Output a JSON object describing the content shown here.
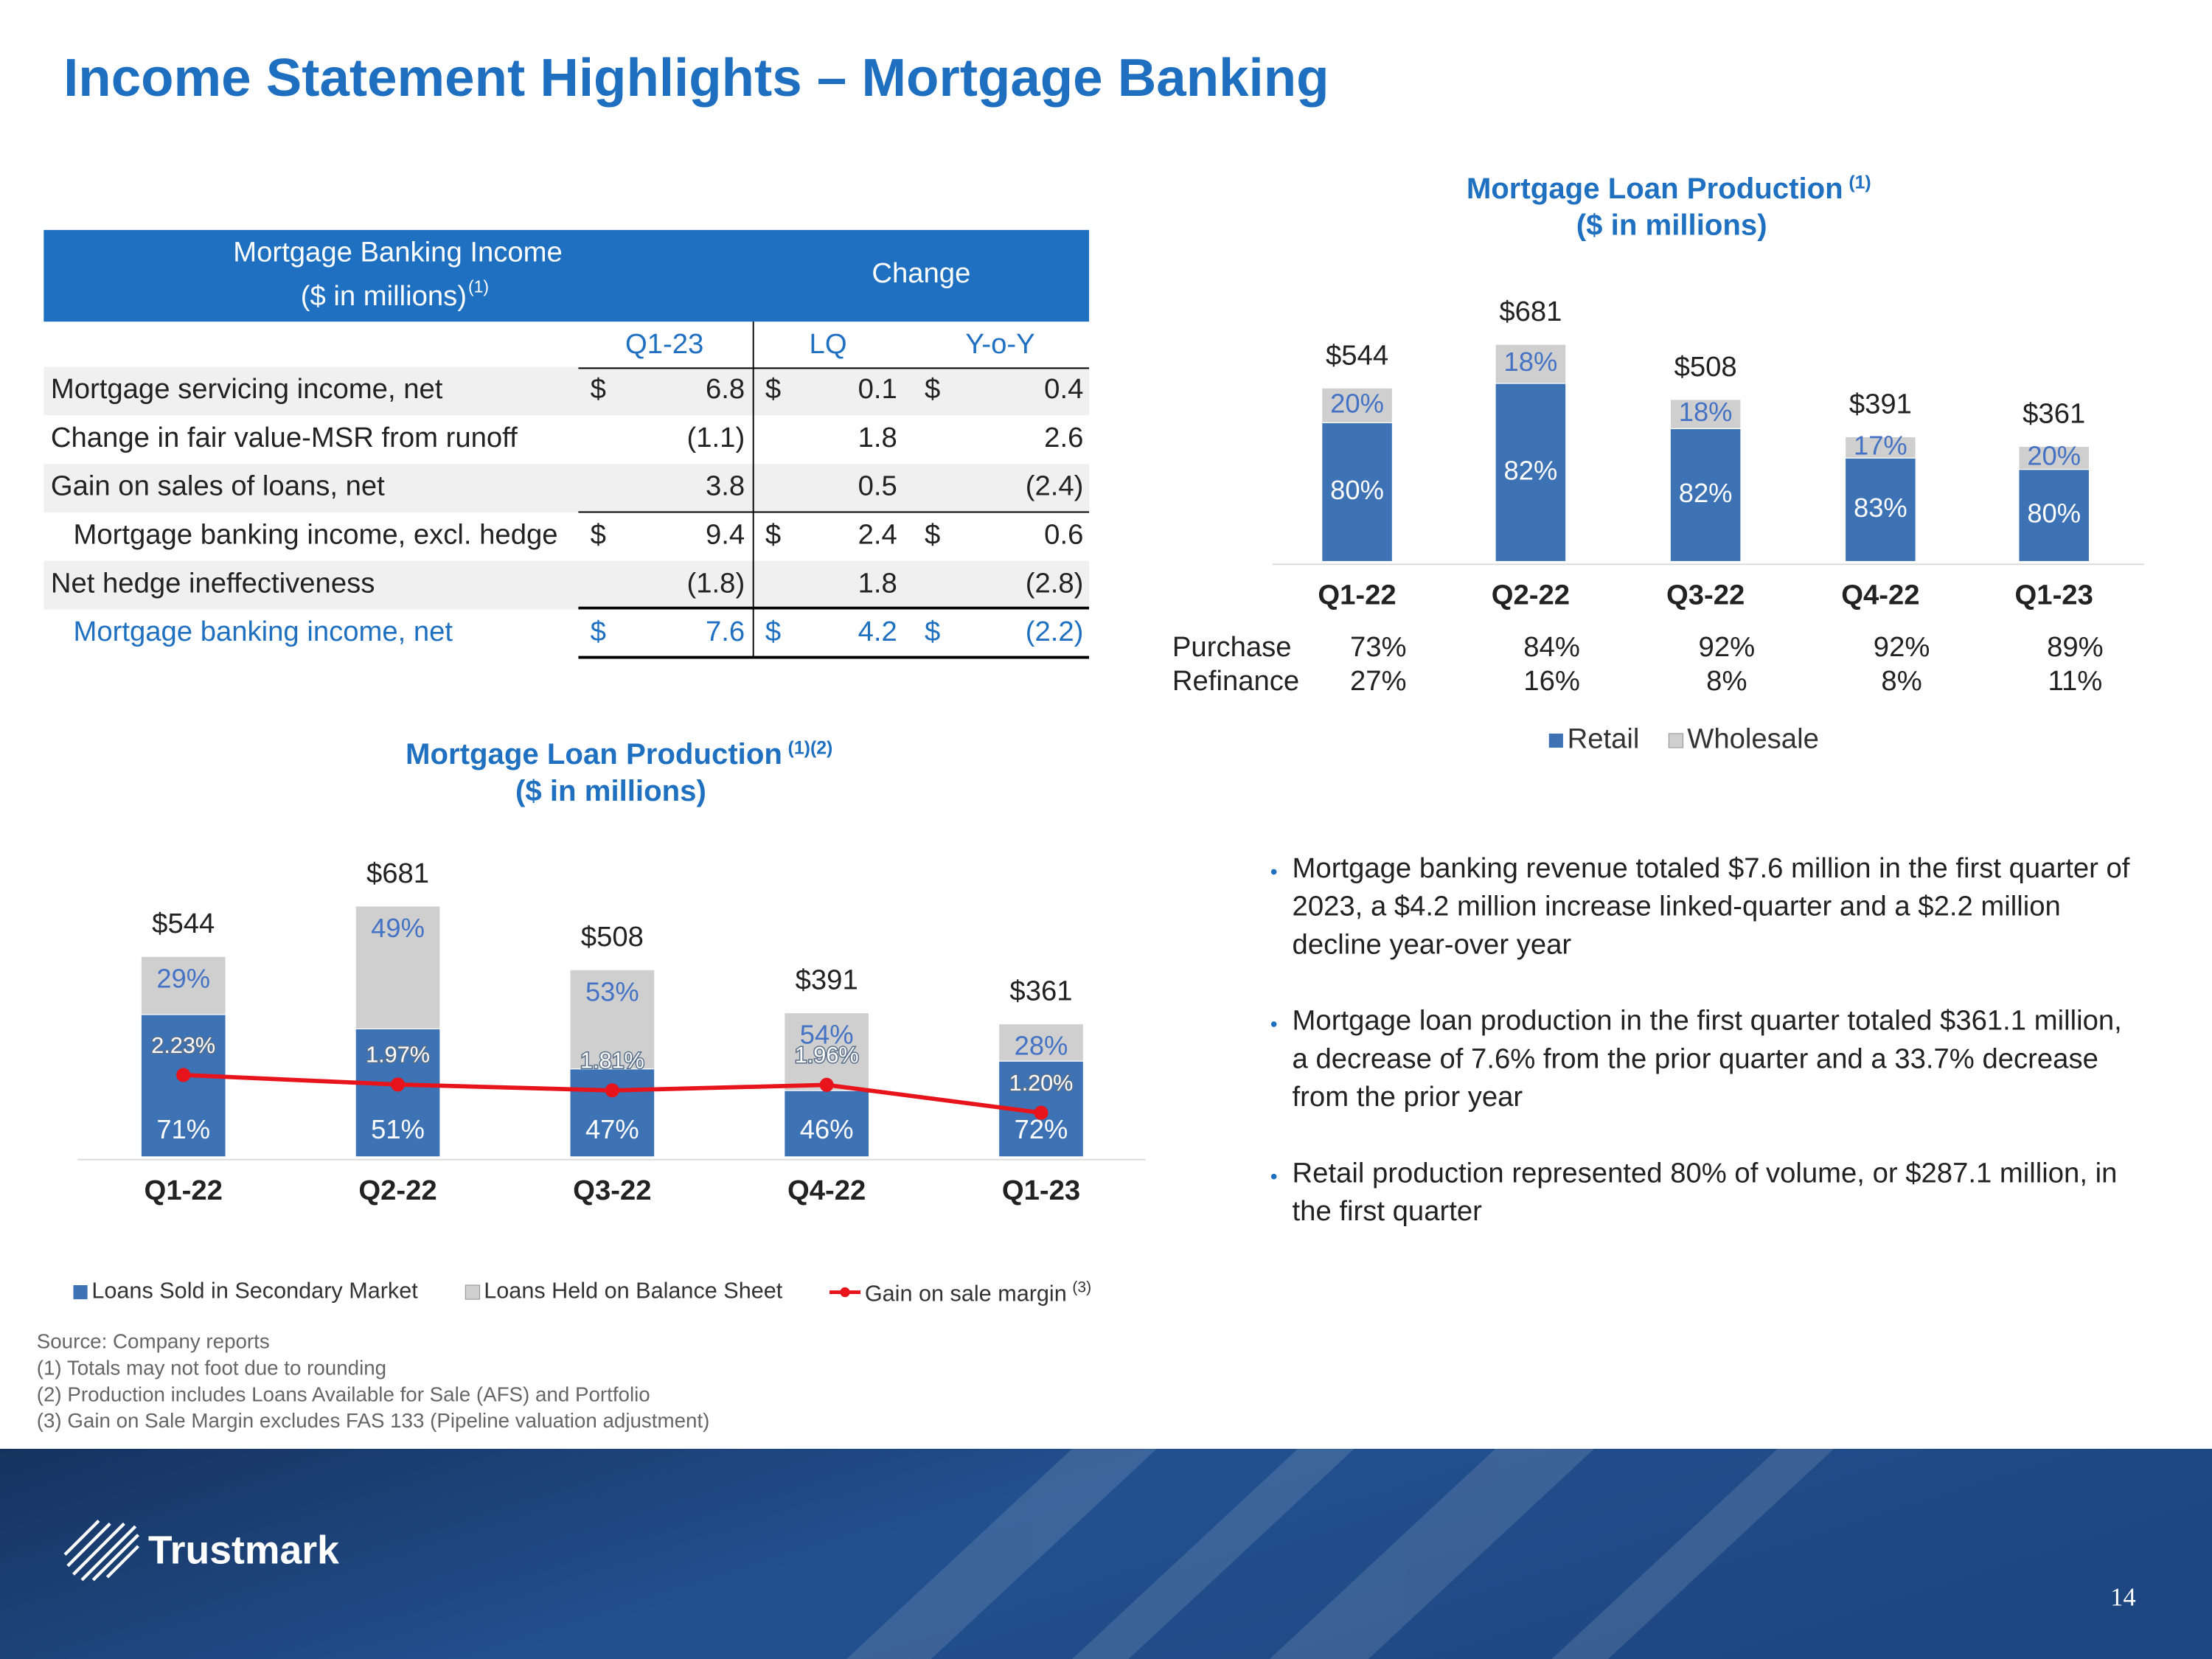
{
  "title": "Income Statement Highlights – Mortgage Banking",
  "table": {
    "header": {
      "label_lines": [
        "Mortgage Banking Income",
        "($ in millions)"
      ],
      "label_note": "(1)",
      "change": "Change"
    },
    "columns": [
      "Q1-23",
      "LQ",
      "Y-o-Y"
    ],
    "rows": [
      {
        "label": "Mortgage servicing income, net",
        "cells": [
          "$",
          "6.8",
          "$",
          "0.1",
          "$",
          "0.4"
        ]
      },
      {
        "label": "Change in fair value-MSR from runoff",
        "cells": [
          null,
          "(1.1)",
          null,
          "1.8",
          null,
          "2.6"
        ]
      },
      {
        "label": "Gain on sales of loans, net",
        "cells": [
          null,
          "3.8",
          null,
          "0.5",
          null,
          "(2.4)"
        ]
      },
      {
        "label": "Mortgage banking income, excl. hedge",
        "cells": [
          "$",
          "9.4",
          "$",
          "2.4",
          "$",
          "0.6"
        ]
      },
      {
        "label": "Net hedge ineffectiveness",
        "cells": [
          null,
          "(1.8)",
          null,
          "1.8",
          null,
          "(2.8)"
        ]
      },
      {
        "label": "Mortgage banking income, net",
        "cells": [
          "$",
          "7.6",
          "$",
          "4.2",
          "$",
          "(2.2)"
        ]
      }
    ]
  },
  "chart_data": [
    {
      "type": "stacked_bar",
      "title": "Mortgage Loan Production",
      "title_note": "(1)",
      "subtitle": "($ in millions)",
      "categories": [
        "Q1-22",
        "Q2-22",
        "Q3-22",
        "Q4-22",
        "Q1-23"
      ],
      "totals": {
        "values": [
          544,
          681,
          508,
          391,
          361
        ],
        "value_labels": [
          "$544",
          "$681",
          "$508",
          "$391",
          "$361"
        ]
      },
      "series": [
        {
          "name": "Retail",
          "color": "#3d72b4",
          "values": [
            80,
            82,
            82,
            83,
            80
          ],
          "value_labels": [
            "80%",
            "82%",
            "82%",
            "83%",
            "80%"
          ]
        },
        {
          "name": "Wholesale",
          "color": "#cfcfcf",
          "values": [
            20,
            18,
            18,
            17,
            20
          ],
          "value_labels": [
            "20%",
            "18%",
            "18%",
            "17%",
            "20%"
          ]
        }
      ],
      "mix": [
        {
          "name": "Purchase",
          "values": [
            73,
            84,
            92,
            92,
            89
          ],
          "value_labels": [
            "73%",
            "84%",
            "92%",
            "92%",
            "89%"
          ]
        },
        {
          "name": "Refinance",
          "values": [
            27,
            16,
            8,
            8,
            11
          ],
          "value_labels": [
            "27%",
            "16%",
            "8%",
            "8%",
            "11%"
          ]
        }
      ],
      "legend": "bottom"
    },
    {
      "type": "stacked_bar_line",
      "title": "Mortgage Loan Production",
      "title_note": "(1)(2)",
      "subtitle": "($ in millions)",
      "categories": [
        "Q1-22",
        "Q2-22",
        "Q3-22",
        "Q4-22",
        "Q1-23"
      ],
      "totals": {
        "values": [
          544,
          681,
          508,
          391,
          361
        ],
        "value_labels": [
          "$544",
          "$681",
          "$508",
          "$391",
          "$361"
        ]
      },
      "series": [
        {
          "name": "Loans Sold in Secondary Market",
          "color": "#3d72b4",
          "values": [
            71,
            51,
            47,
            46,
            72
          ],
          "value_labels": [
            "71%",
            "51%",
            "47%",
            "46%",
            "72%"
          ]
        },
        {
          "name": "Loans Held on Balance Sheet",
          "color": "#cfcfcf",
          "values": [
            29,
            49,
            53,
            54,
            28
          ],
          "value_labels": [
            "29%",
            "49%",
            "53%",
            "54%",
            "28%"
          ]
        }
      ],
      "line": {
        "name": "Gain on sale margin",
        "name_note": "(3)",
        "color": "#e8141b",
        "axis": "y2",
        "values": [
          2.23,
          1.97,
          1.81,
          1.96,
          1.2
        ],
        "value_labels": [
          "2.23%",
          "1.97%",
          "1.81%",
          "1.96%",
          "1.20%"
        ]
      },
      "legend": "bottom"
    }
  ],
  "bullets": [
    "Mortgage banking revenue totaled $7.6 million in the first quarter of 2023, a $4.2 million increase linked-quarter and a $2.2 million decline year-over year",
    "Mortgage loan production in the first quarter totaled $361.1 million, a decrease of 7.6% from the prior quarter and a 33.7% decrease from the prior year",
    "Retail production represented 80% of volume, or $287.1 million, in the first quarter"
  ],
  "footnotes": [
    "Source: Company reports",
    "(1) Totals may not foot due to rounding",
    "(2) Production includes Loans Available for Sale (AFS) and Portfolio",
    "(3) Gain on Sale Margin excludes FAS 133 (Pipeline valuation adjustment)"
  ],
  "logo": "Trustmark",
  "page_number": "14"
}
